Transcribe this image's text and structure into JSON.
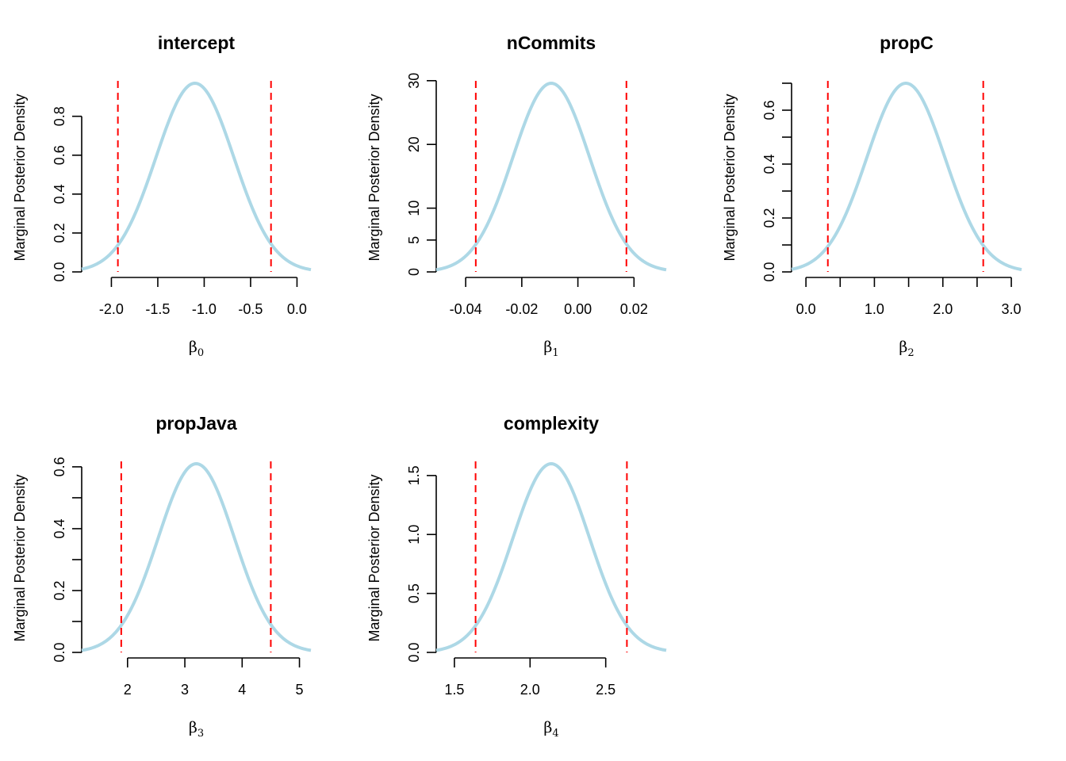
{
  "colors": {
    "density": "#add8e6",
    "interval": "#ff0000"
  },
  "chart_data": [
    {
      "type": "line",
      "title": "intercept",
      "xlabel": "β",
      "xlabel_sub": "0",
      "ylabel": "Marginal Posterior Density",
      "x_ticks": [
        -2.0,
        -1.5,
        -1.0,
        -0.5,
        0.0
      ],
      "x_tick_labels": [
        "-2.0",
        "-1.5",
        "-1.0",
        "-0.5",
        "0.0"
      ],
      "y_ticks": [
        0.0,
        0.2,
        0.4,
        0.6,
        0.8
      ],
      "y_tick_labels": [
        "0.0",
        "0.2",
        "0.4",
        "0.6",
        "0.8"
      ],
      "xlim": [
        -2.32,
        0.15
      ],
      "ylim": [
        0.0,
        0.97
      ],
      "x_range": [
        -2.32,
        0.15
      ],
      "mean": -1.1,
      "sd": 0.42,
      "interval": [
        -1.93,
        -0.28
      ]
    },
    {
      "type": "line",
      "title": "nCommits",
      "xlabel": "β",
      "xlabel_sub": "1",
      "ylabel": "Marginal Posterior Density",
      "x_ticks": [
        -0.04,
        -0.02,
        0.0,
        0.02
      ],
      "x_tick_labels": [
        "-0.04",
        "-0.02",
        "0.00",
        "0.02"
      ],
      "y_ticks": [
        0,
        5,
        10,
        20,
        30
      ],
      "y_tick_labels": [
        "0",
        "5",
        "10",
        "20",
        "30"
      ],
      "xlim": [
        -0.0505,
        0.0315
      ],
      "ylim": [
        0,
        29.6
      ],
      "x_range": [
        -0.0505,
        0.0315
      ],
      "mean": -0.0095,
      "sd": 0.0137,
      "interval": [
        -0.0364,
        0.0173
      ]
    },
    {
      "type": "line",
      "title": "propC",
      "xlabel": "β",
      "xlabel_sub": "2",
      "ylabel": "Marginal Posterior Density",
      "x_ticks": [
        0.0,
        0.5,
        1.0,
        1.5,
        2.0,
        2.5,
        3.0
      ],
      "x_tick_labels": [
        "0.0",
        "",
        "1.0",
        "",
        "2.0",
        "",
        "3.0"
      ],
      "y_ticks": [
        0.0,
        0.1,
        0.2,
        0.3,
        0.4,
        0.5,
        0.6,
        0.7
      ],
      "y_tick_labels": [
        "0.0",
        "",
        "0.2",
        "",
        "0.4",
        "",
        "0.6",
        ""
      ],
      "xlim": [
        -0.21,
        3.15
      ],
      "ylim": [
        0.0,
        0.7
      ],
      "x_range": [
        -0.21,
        3.15
      ],
      "mean": 1.46,
      "sd": 0.57,
      "interval": [
        0.32,
        2.59
      ]
    },
    {
      "type": "line",
      "title": "propJava",
      "xlabel": "β",
      "xlabel_sub": "3",
      "ylabel": "Marginal Posterior Density",
      "x_ticks": [
        2,
        3,
        4,
        5
      ],
      "x_tick_labels": [
        "2",
        "3",
        "4",
        "5"
      ],
      "y_ticks": [
        0.0,
        0.1,
        0.2,
        0.3,
        0.4,
        0.5,
        0.6
      ],
      "y_tick_labels": [
        "0.0",
        "",
        "0.2",
        "",
        "0.4",
        "",
        "0.6"
      ],
      "xlim": [
        1.2,
        5.2
      ],
      "ylim": [
        0.0,
        0.61
      ],
      "x_range": [
        1.2,
        5.2
      ],
      "mean": 3.2,
      "sd": 0.665,
      "interval": [
        1.89,
        4.5
      ]
    },
    {
      "type": "line",
      "title": "complexity",
      "xlabel": "β",
      "xlabel_sub": "4",
      "ylabel": "Marginal Posterior Density",
      "x_ticks": [
        1.5,
        2.0,
        2.5
      ],
      "x_tick_labels": [
        "1.5",
        "2.0",
        "2.5"
      ],
      "y_ticks": [
        0.0,
        0.5,
        1.0,
        1.5
      ],
      "y_tick_labels": [
        "0.0",
        "0.5",
        "1.0",
        "1.5"
      ],
      "xlim": [
        1.38,
        2.9
      ],
      "ylim": [
        0.0,
        1.6
      ],
      "x_range": [
        1.38,
        2.9
      ],
      "mean": 2.14,
      "sd": 0.253,
      "interval": [
        1.64,
        2.64
      ]
    }
  ]
}
